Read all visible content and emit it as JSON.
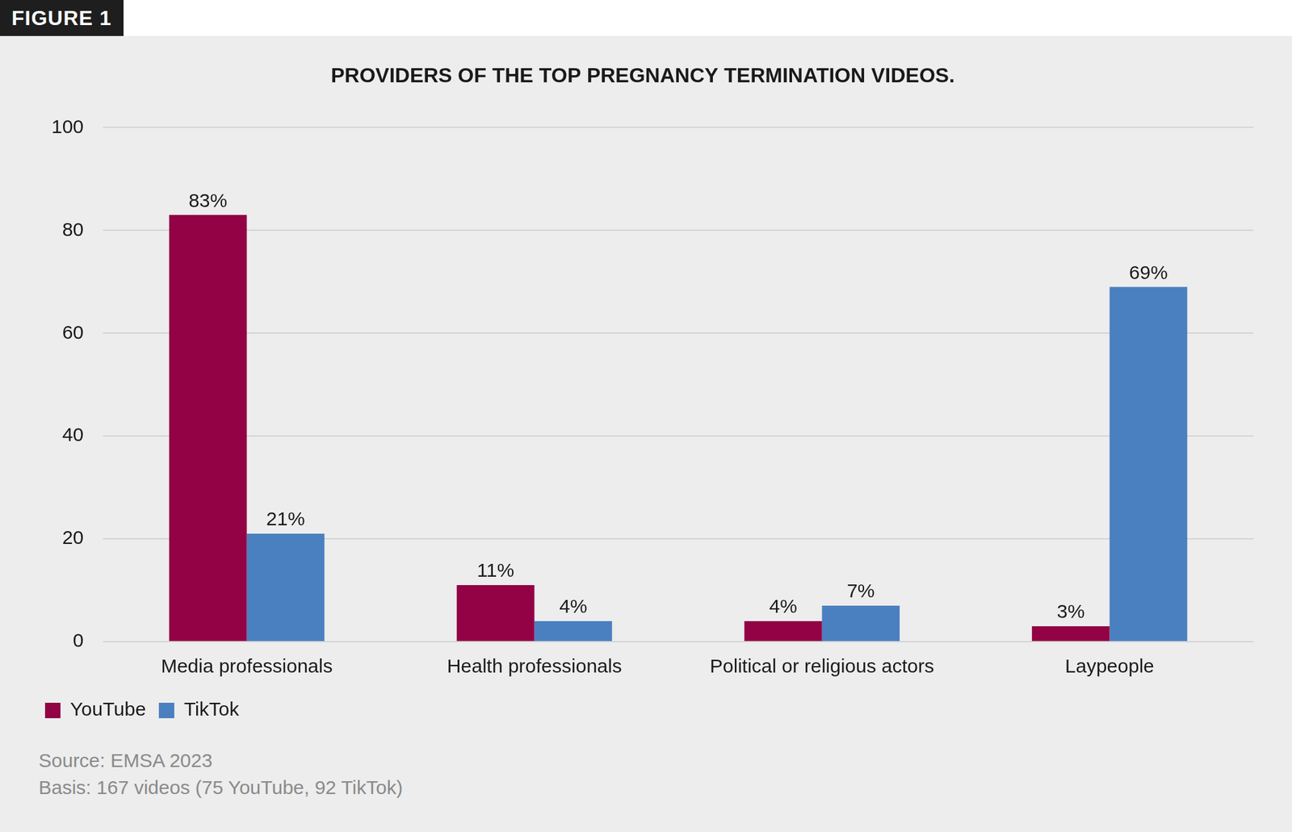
{
  "chart_data": {
    "type": "bar",
    "figure_label": "FIGURE 1",
    "title": "PROVIDERS OF THE TOP PREGNANCY TERMINATION VIDEOS.",
    "categories": [
      "Media professionals",
      "Health professionals",
      "Political or religious actors",
      "Laypeople"
    ],
    "series": [
      {
        "name": "YouTube",
        "color": "#920245",
        "values": [
          83,
          11,
          4,
          3
        ],
        "value_labels": [
          "83%",
          "11%",
          "4%",
          "3%"
        ]
      },
      {
        "name": "TikTok",
        "color": "#4a80c0",
        "values": [
          21,
          4,
          7,
          69
        ],
        "value_labels": [
          "21%",
          "4%",
          "7%",
          "69%"
        ]
      }
    ],
    "ylim": [
      0,
      100
    ],
    "yticks": [
      0,
      20,
      40,
      60,
      80,
      100
    ],
    "grid": true,
    "legend": "bottom-left",
    "data_labels": true,
    "annotations": [
      "Source: EMSA 2023",
      "Basis: 167 videos (75 YouTube, 92 TikTok)"
    ]
  }
}
